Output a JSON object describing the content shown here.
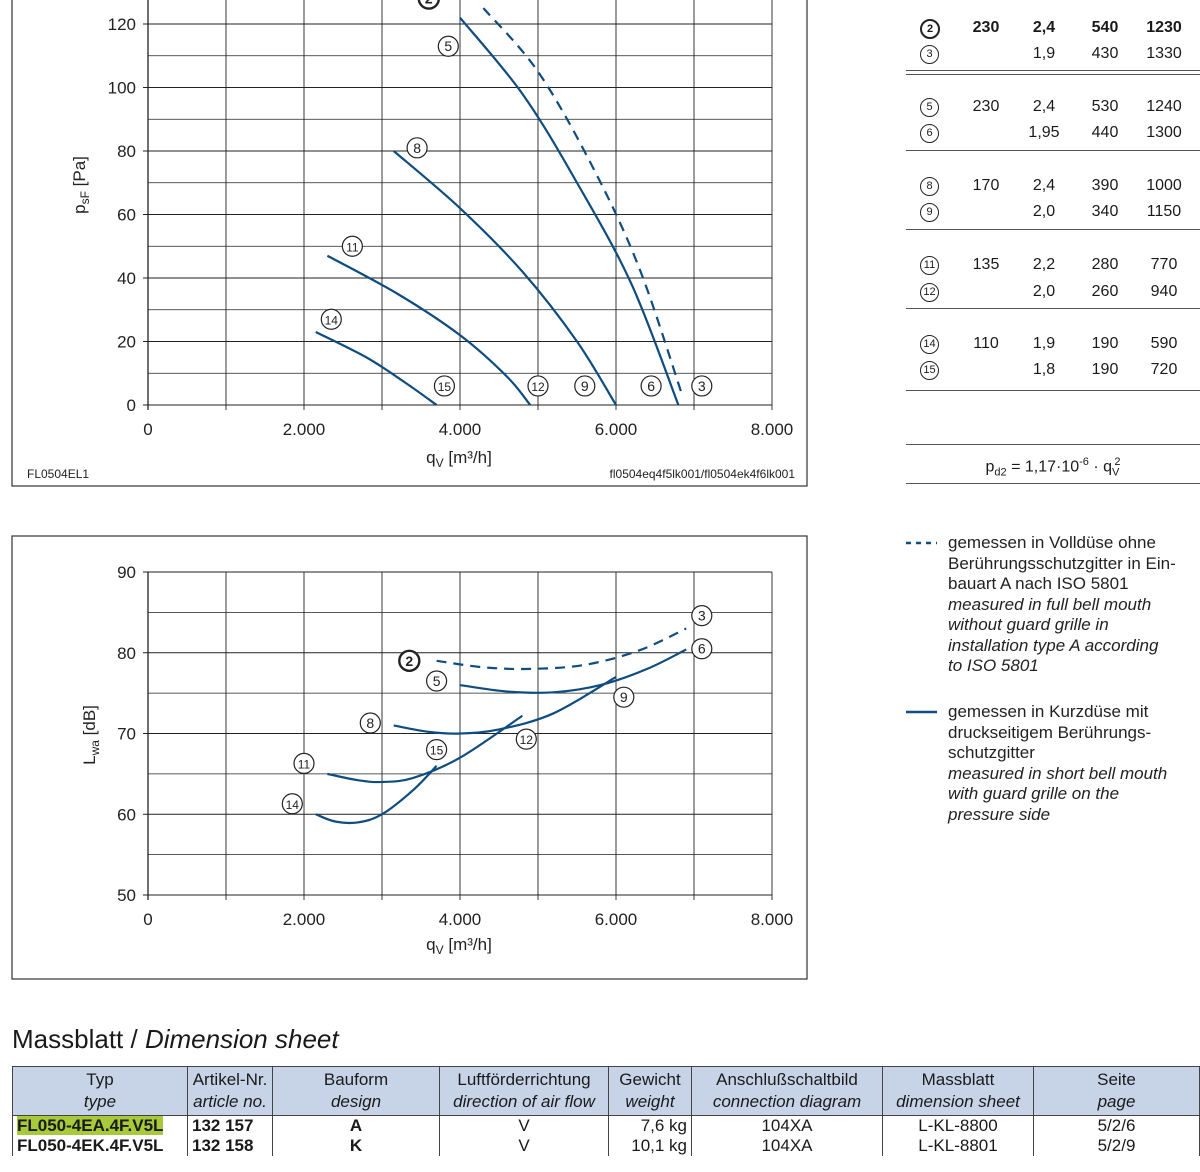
{
  "chart_pressure": {
    "type": "line",
    "ylabel_main": "p",
    "ylabel_sub": "sF",
    "ylabel_unit": " [Pa]",
    "xlabel_main": "q",
    "xlabel_sub": "V",
    "xlabel_unit": " [m³/h]",
    "xlim": [
      0,
      8000
    ],
    "ylim": [
      0,
      125
    ],
    "xticks": [
      "0",
      "2.000",
      "4.000",
      "6.000",
      "8.000"
    ],
    "yticks": [
      "0",
      "20",
      "40",
      "60",
      "80",
      "100",
      "120"
    ],
    "footer_left": "FL0504EL1",
    "footer_right": "fl0504eq4f5lk001/fl0504ek4f6lk001",
    "series": [
      {
        "id": "2",
        "style": "dashed",
        "x": [
          4300,
          5000,
          5700,
          6300,
          6850
        ],
        "y": [
          125,
          105,
          75,
          43,
          3
        ]
      },
      {
        "id": "5",
        "style": "solid",
        "x": [
          4000,
          4800,
          5500,
          6200,
          6800
        ],
        "y": [
          122,
          98,
          70,
          38,
          0
        ]
      },
      {
        "id": "8",
        "style": "solid",
        "x": [
          3150,
          4000,
          4800,
          5500,
          6000
        ],
        "y": [
          80,
          62,
          42,
          20,
          0
        ]
      },
      {
        "id": "11",
        "style": "solid",
        "x": [
          2300,
          3200,
          4000,
          4600,
          4900
        ],
        "y": [
          47,
          35,
          22,
          9,
          0
        ]
      },
      {
        "id": "14",
        "style": "solid",
        "x": [
          2150,
          2800,
          3300,
          3700
        ],
        "y": [
          23,
          15,
          7,
          0
        ]
      }
    ],
    "labels": [
      {
        "text": "2",
        "x": 3600,
        "y": 128,
        "bold": true
      },
      {
        "text": "5",
        "x": 3850,
        "y": 113
      },
      {
        "text": "8",
        "x": 3450,
        "y": 81
      },
      {
        "text": "11",
        "x": 2620,
        "y": 50
      },
      {
        "text": "14",
        "x": 2350,
        "y": 27
      },
      {
        "text": "15",
        "x": 3800,
        "y": 6
      },
      {
        "text": "12",
        "x": 5000,
        "y": 6
      },
      {
        "text": "9",
        "x": 5600,
        "y": 6
      },
      {
        "text": "6",
        "x": 6450,
        "y": 6
      },
      {
        "text": "3",
        "x": 7100,
        "y": 6
      }
    ]
  },
  "chart_sound": {
    "type": "line",
    "ylabel_main": "L",
    "ylabel_sub": "wa",
    "ylabel_unit": " [dB]",
    "xlabel_main": "q",
    "xlabel_sub": "V",
    "xlabel_unit": " [m³/h]",
    "xlim": [
      0,
      8000
    ],
    "ylim": [
      50,
      90
    ],
    "xticks": [
      "0",
      "2.000",
      "4.000",
      "6.000",
      "8.000"
    ],
    "yticks": [
      "50",
      "60",
      "70",
      "80",
      "90"
    ],
    "series": [
      {
        "id": "2",
        "style": "dashed",
        "x": [
          3700,
          4300,
          4900,
          5600,
          6300,
          6900
        ],
        "y": [
          79,
          78.2,
          78,
          78.5,
          80.3,
          83
        ]
      },
      {
        "id": "5",
        "style": "solid",
        "x": [
          4000,
          4600,
          5200,
          5800,
          6400,
          6900
        ],
        "y": [
          76,
          75.2,
          75.1,
          76,
          78,
          80.4
        ]
      },
      {
        "id": "8",
        "style": "solid",
        "x": [
          3150,
          3600,
          4000,
          4500,
          5200,
          6000
        ],
        "y": [
          71,
          70.2,
          70,
          70.5,
          72.5,
          77
        ]
      },
      {
        "id": "11",
        "style": "solid",
        "x": [
          2300,
          2700,
          3000,
          3400,
          4000,
          4800
        ],
        "y": [
          65,
          64.2,
          64,
          64.5,
          67,
          72.2
        ]
      },
      {
        "id": "14",
        "style": "solid",
        "x": [
          2150,
          2400,
          2700,
          3000,
          3400,
          3700
        ],
        "y": [
          60,
          59.1,
          59,
          60,
          63,
          66
        ]
      }
    ],
    "labels": [
      {
        "text": "2",
        "x": 3350,
        "y": 79,
        "bold": true
      },
      {
        "text": "3",
        "x": 7100,
        "y": 84.6
      },
      {
        "text": "6",
        "x": 7100,
        "y": 80.5
      },
      {
        "text": "5",
        "x": 3700,
        "y": 76.5
      },
      {
        "text": "9",
        "x": 6100,
        "y": 74.5
      },
      {
        "text": "8",
        "x": 2850,
        "y": 71.3
      },
      {
        "text": "15",
        "x": 3700,
        "y": 68
      },
      {
        "text": "12",
        "x": 4850,
        "y": 69.3
      },
      {
        "text": "11",
        "x": 2000,
        "y": 66.3
      },
      {
        "text": "14",
        "x": 1850,
        "y": 61.3
      }
    ]
  },
  "side_table": {
    "groups": [
      {
        "rows": [
          {
            "id": "2",
            "u": "230",
            "i": "2,4",
            "p": "540",
            "n": "1230",
            "bold": true
          },
          {
            "id": "3",
            "u": "",
            "i": "1,9",
            "p": "430",
            "n": "1330"
          }
        ]
      },
      {
        "rows": [
          {
            "id": "5",
            "u": "230",
            "i": "2,4",
            "p": "530",
            "n": "1240"
          },
          {
            "id": "6",
            "u": "",
            "i": "1,95",
            "p": "440",
            "n": "1300"
          }
        ]
      },
      {
        "rows": [
          {
            "id": "8",
            "u": "170",
            "i": "2,4",
            "p": "390",
            "n": "1000"
          },
          {
            "id": "9",
            "u": "",
            "i": "2,0",
            "p": "340",
            "n": "1150"
          }
        ]
      },
      {
        "rows": [
          {
            "id": "11",
            "u": "135",
            "i": "2,2",
            "p": "280",
            "n": "770"
          },
          {
            "id": "12",
            "u": "",
            "i": "2,0",
            "p": "260",
            "n": "940"
          }
        ]
      },
      {
        "rows": [
          {
            "id": "14",
            "u": "110",
            "i": "1,9",
            "p": "190",
            "n": "590"
          },
          {
            "id": "15",
            "u": "",
            "i": "1,8",
            "p": "190",
            "n": "720"
          }
        ]
      }
    ],
    "formula_lhs": "p",
    "formula_lhs_sub": "d2",
    "formula_mid": " = 1,17·10",
    "formula_exp": "-6",
    "formula_dot": " · q",
    "formula_q_sub": "V",
    "formula_q_exp": "2"
  },
  "legend": {
    "dashed_line1": "gemessen in Volldüse ohne",
    "dashed_line2": "Berührungsschutzgitter in Ein-",
    "dashed_line3": "bauart A nach ISO 5801",
    "dashed_en1": "measured in full bell mouth",
    "dashed_en2": "without guard grille in",
    "dashed_en3": "installation type A according",
    "dashed_en4": "to ISO 5801",
    "solid_line1": "gemessen in Kurzdüse mit",
    "solid_line2": "druckseitigem Berührungs-",
    "solid_line3": "schutzgitter",
    "solid_en1": "measured in short bell mouth",
    "solid_en2": "with guard grille on the",
    "solid_en3": "pressure side"
  },
  "section": {
    "title_de": "Massblatt / ",
    "title_en": "Dimension sheet"
  },
  "dim_table": {
    "headers": [
      {
        "de": "Typ",
        "en": "type"
      },
      {
        "de": "Artikel-Nr.",
        "en": "article no."
      },
      {
        "de": "Bauform",
        "en": "design"
      },
      {
        "de": "Luftförderrichtung",
        "en": "direction of air flow"
      },
      {
        "de": "Gewicht",
        "en": "weight"
      },
      {
        "de": "Anschlußschaltbild",
        "en": "connection diagram"
      },
      {
        "de": "Massblatt",
        "en": "dimension sheet"
      },
      {
        "de": "Seite",
        "en": "page"
      }
    ],
    "rows": [
      {
        "type": "FL050-4EA.4F.V5L",
        "article": "132 157",
        "design": "A",
        "flow": "V",
        "weight": "7,6 kg",
        "diagram": "104XA",
        "sheet": "L-KL-8800",
        "page": "5/2/6"
      },
      {
        "type": "FL050-4EK.4F.V5L",
        "article": "132 158",
        "design": "K",
        "flow": "V",
        "weight": "10,1 kg",
        "diagram": "104XA",
        "sheet": "L-KL-8801",
        "page": "5/2/9"
      }
    ]
  },
  "colors": {
    "curve": "#0f4c7f",
    "header_bg": "#c7d4e8",
    "highlight": "#a7c93a"
  }
}
